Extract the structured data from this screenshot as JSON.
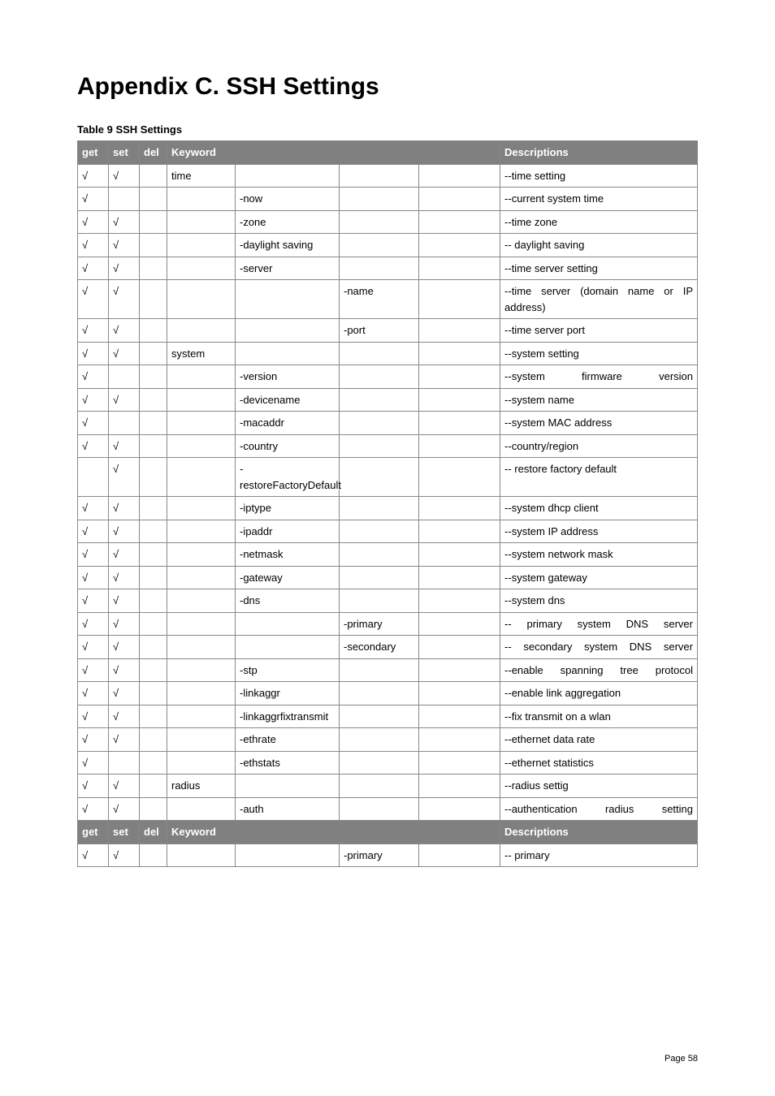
{
  "title": "Appendix C. SSH Settings",
  "caption": "Table 9 SSH Settings",
  "columns": {
    "get": "get",
    "set": "set",
    "del": "del",
    "keyword": "Keyword",
    "desc": "Descriptions"
  },
  "check": "√",
  "page_label": "Page  58",
  "rows": [
    {
      "get": "√",
      "set": "√",
      "del": "",
      "k1": "time",
      "k2": "",
      "k3": "",
      "k4": "",
      "desc": "--time setting",
      "just": false,
      "hdr": false
    },
    {
      "get": "√",
      "set": "",
      "del": "",
      "k1": "",
      "k2": "-now",
      "k3": "",
      "k4": "",
      "desc": "--current system time",
      "just": false,
      "hdr": false
    },
    {
      "get": "√",
      "set": "√",
      "del": "",
      "k1": "",
      "k2": "-zone",
      "k3": "",
      "k4": "",
      "desc": "--time zone",
      "just": false,
      "hdr": false
    },
    {
      "get": "√",
      "set": "√",
      "del": "",
      "k1": "",
      "k2": "-daylight saving",
      "k3": "",
      "k4": "",
      "desc": "-- daylight saving",
      "just": false,
      "hdr": false
    },
    {
      "get": "√",
      "set": "√",
      "del": "",
      "k1": "",
      "k2": "-server",
      "k3": "",
      "k4": "",
      "desc": "--time server setting",
      "just": false,
      "hdr": false
    },
    {
      "get": "√",
      "set": "√",
      "del": "",
      "k1": "",
      "k2": "",
      "k3": "-name",
      "k4": "",
      "desc": "--time server (domain name or IP address)",
      "just": true,
      "hdr": false
    },
    {
      "get": "√",
      "set": "√",
      "del": "",
      "k1": "",
      "k2": "",
      "k3": "-port",
      "k4": "",
      "desc": "--time server port",
      "just": false,
      "hdr": false
    },
    {
      "get": "√",
      "set": "√",
      "del": "",
      "k1": "system",
      "k2": "",
      "k3": "",
      "k4": "",
      "desc": "--system setting",
      "just": false,
      "hdr": false
    },
    {
      "get": "√",
      "set": "",
      "del": "",
      "k1": "",
      "k2": "-version",
      "k3": "",
      "k4": "",
      "desc": "--system firmware version",
      "just": true,
      "hdr": false
    },
    {
      "get": "√",
      "set": "√",
      "del": "",
      "k1": "",
      "k2": "-devicename",
      "k3": "",
      "k4": "",
      "desc": "--system name",
      "just": false,
      "hdr": false
    },
    {
      "get": "√",
      "set": "",
      "del": "",
      "k1": "",
      "k2": "-macaddr",
      "k3": "",
      "k4": "",
      "desc": "--system MAC address",
      "just": false,
      "hdr": false
    },
    {
      "get": "√",
      "set": "√",
      "del": "",
      "k1": "",
      "k2": "-country",
      "k3": "",
      "k4": "",
      "desc": "--country/region",
      "just": false,
      "hdr": false
    },
    {
      "get": "",
      "set": "√",
      "del": "",
      "k1": "",
      "k2": "-restoreFactoryDefault",
      "k3": "",
      "k4": "",
      "desc": "-- restore factory default",
      "just": false,
      "hdr": false
    },
    {
      "get": "√",
      "set": "√",
      "del": "",
      "k1": "",
      "k2": "-iptype",
      "k3": "",
      "k4": "",
      "desc": "--system dhcp client",
      "just": false,
      "hdr": false
    },
    {
      "get": "√",
      "set": "√",
      "del": "",
      "k1": "",
      "k2": "-ipaddr",
      "k3": "",
      "k4": "",
      "desc": "--system IP address",
      "just": false,
      "hdr": false
    },
    {
      "get": "√",
      "set": "√",
      "del": "",
      "k1": "",
      "k2": "-netmask",
      "k3": "",
      "k4": "",
      "desc": "--system network mask",
      "just": false,
      "hdr": false
    },
    {
      "get": "√",
      "set": "√",
      "del": "",
      "k1": "",
      "k2": "-gateway",
      "k3": "",
      "k4": "",
      "desc": "--system gateway",
      "just": false,
      "hdr": false
    },
    {
      "get": "√",
      "set": "√",
      "del": "",
      "k1": "",
      "k2": "-dns",
      "k3": "",
      "k4": "",
      "desc": "--system dns",
      "just": false,
      "hdr": false
    },
    {
      "get": "√",
      "set": "√",
      "del": "",
      "k1": "",
      "k2": "",
      "k3": "-primary",
      "k4": "",
      "desc": "-- primary system DNS server",
      "just": true,
      "hdr": false
    },
    {
      "get": "√",
      "set": "√",
      "del": "",
      "k1": "",
      "k2": "",
      "k3": "-secondary",
      "k4": "",
      "desc": "-- secondary system DNS server",
      "just": true,
      "hdr": false
    },
    {
      "get": "√",
      "set": "√",
      "del": "",
      "k1": "",
      "k2": "-stp",
      "k3": "",
      "k4": "",
      "desc": "--enable spanning tree protocol",
      "just": true,
      "hdr": false
    },
    {
      "get": "√",
      "set": "√",
      "del": "",
      "k1": "",
      "k2": "-linkaggr",
      "k3": "",
      "k4": "",
      "desc": "--enable link aggregation",
      "just": false,
      "hdr": false
    },
    {
      "get": "√",
      "set": "√",
      "del": "",
      "k1": "",
      "k2": "-linkaggrfixtransmit",
      "k3": "",
      "k4": "",
      "desc": "--fix transmit on a wlan",
      "just": false,
      "hdr": false
    },
    {
      "get": "√",
      "set": "√",
      "del": "",
      "k1": "",
      "k2": "-ethrate",
      "k3": "",
      "k4": "",
      "desc": "--ethernet data rate",
      "just": false,
      "hdr": false
    },
    {
      "get": "√",
      "set": "",
      "del": "",
      "k1": "",
      "k2": "-ethstats",
      "k3": "",
      "k4": "",
      "desc": "--ethernet statistics",
      "just": false,
      "hdr": false
    },
    {
      "get": "√",
      "set": "√",
      "del": "",
      "k1": "radius",
      "k2": "",
      "k3": "",
      "k4": "",
      "desc": "--radius settig",
      "just": false,
      "hdr": false
    },
    {
      "get": "√",
      "set": "√",
      "del": "",
      "k1": "",
      "k2": "-auth",
      "k3": "",
      "k4": "",
      "desc": "--authentication radius setting",
      "just": true,
      "hdr": false
    },
    {
      "hdr": true
    },
    {
      "get": "√",
      "set": "√",
      "del": "",
      "k1": "",
      "k2": "",
      "k3": "-primary",
      "k4": "",
      "desc": "-- primary",
      "just": false,
      "hdr": false
    }
  ]
}
